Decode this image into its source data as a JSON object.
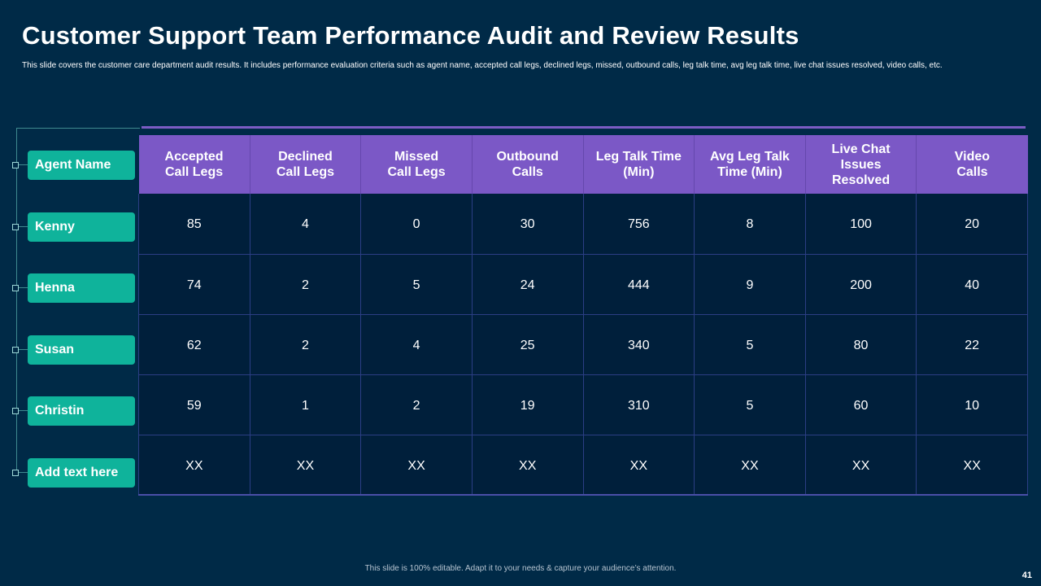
{
  "title": "Customer Support Team Performance Audit and Review Results",
  "subtitle": "This slide covers the customer care department audit results. It includes performance evaluation criteria such as agent name, accepted call legs, declined legs, missed, outbound calls, leg talk time, avg leg talk time, live chat issues resolved, video calls, etc.",
  "agents": [
    {
      "label": "Agent Name"
    },
    {
      "label": "Kenny"
    },
    {
      "label": "Henna"
    },
    {
      "label": "Susan"
    },
    {
      "label": "Christin"
    },
    {
      "label": "Add text  here"
    }
  ],
  "table": {
    "headers": [
      {
        "line1": "Accepted",
        "line2": "Call Legs",
        "line3": ""
      },
      {
        "line1": "Declined",
        "line2": "Call Legs",
        "line3": ""
      },
      {
        "line1": "Missed",
        "line2": "Call Legs",
        "line3": ""
      },
      {
        "line1": "Outbound",
        "line2": "Calls",
        "line3": ""
      },
      {
        "line1": "Leg Talk Time",
        "line2": "(Min)",
        "line3": ""
      },
      {
        "line1": "Avg Leg Talk",
        "line2": "Time (Min)",
        "line3": ""
      },
      {
        "line1": "Live Chat",
        "line2": "Issues",
        "line3": "Resolved"
      },
      {
        "line1": "Video",
        "line2": "Calls",
        "line3": ""
      }
    ],
    "rows": [
      [
        "85",
        "4",
        "0",
        "30",
        "756",
        "8",
        "100",
        "20"
      ],
      [
        "74",
        "2",
        "5",
        "24",
        "444",
        "9",
        "200",
        "40"
      ],
      [
        "62",
        "2",
        "4",
        "25",
        "340",
        "5",
        "80",
        "22"
      ],
      [
        "59",
        "1",
        "2",
        "19",
        "310",
        "5",
        "60",
        "10"
      ],
      [
        "XX",
        "XX",
        "XX",
        "XX",
        "XX",
        "XX",
        "XX",
        "XX"
      ]
    ]
  },
  "footer": "This slide is 100% editable. Adapt it to your needs & capture your audience’s attention.",
  "page_number": "41",
  "colors": {
    "background": "#002a47",
    "header_purple": "#7b58c6",
    "agent_teal": "#0fb39b",
    "cell_bg": "#001f3b"
  }
}
